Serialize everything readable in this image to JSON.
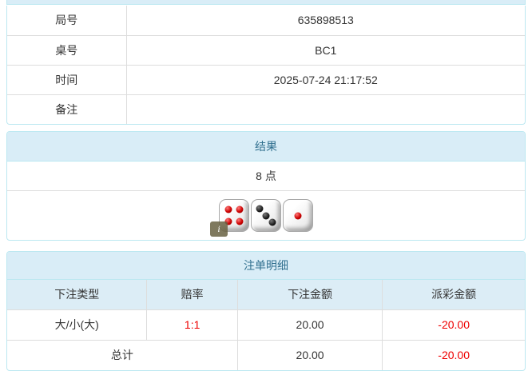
{
  "colors": {
    "heading_bg": "#d9edf7",
    "heading_text": "#31708f",
    "panel_border": "#bce8f1",
    "cell_border": "#dddddd",
    "thead_bg": "#dcedf6",
    "negative_red": "#ee0000"
  },
  "info_table": {
    "rows": [
      {
        "label": "局号",
        "value": "635898513"
      },
      {
        "label": "桌号",
        "value": "BC1"
      },
      {
        "label": "时间",
        "value": "2025-07-24 21:17:52"
      },
      {
        "label": "备注",
        "value": ""
      }
    ]
  },
  "result_panel": {
    "title": "结果",
    "points": "8 点",
    "dice": [
      {
        "value": 4,
        "color": "red"
      },
      {
        "value": 3,
        "color": "black"
      },
      {
        "value": 1,
        "color": "red"
      }
    ],
    "info_icon": "i"
  },
  "bets_panel": {
    "title": "注单明细",
    "columns": [
      "下注类型",
      "赔率",
      "下注金额",
      "派彩金额"
    ],
    "rows": [
      {
        "type": "大/小(大)",
        "odds": "1:1",
        "bet": "20.00",
        "payout": "-20.00"
      }
    ],
    "total": {
      "label": "总计",
      "bet": "20.00",
      "payout": "-20.00"
    }
  }
}
